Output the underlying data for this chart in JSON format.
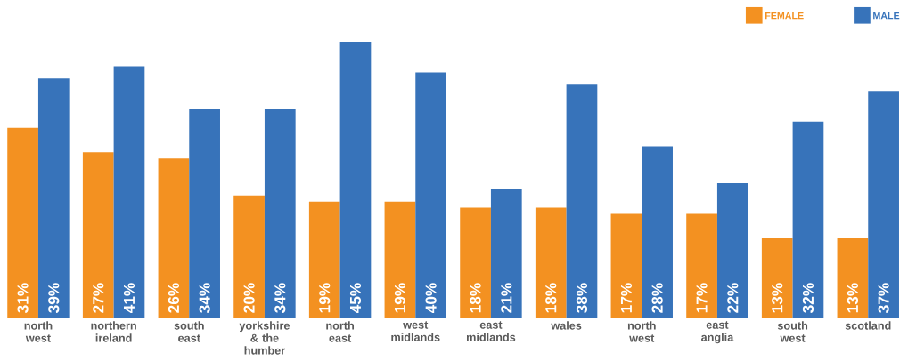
{
  "chart_data": {
    "type": "bar",
    "categories": [
      "north west",
      "northern ireland",
      "south east",
      "yorkshire & the humber",
      "north east",
      "west midlands",
      "east midlands",
      "wales",
      "north west",
      "east anglia",
      "south west",
      "scotland"
    ],
    "series": [
      {
        "name": "FEMALE",
        "color": "#f39121",
        "values": [
          31,
          27,
          26,
          20,
          19,
          19,
          18,
          18,
          17,
          17,
          13,
          13
        ],
        "value_labels": [
          "31%",
          "27%",
          "26%",
          "20%",
          "19%",
          "19%",
          "18%",
          "18%",
          "17%",
          "17%",
          "13%",
          "13%"
        ]
      },
      {
        "name": "MALE",
        "color": "#3773ba",
        "values": [
          39,
          41,
          34,
          34,
          45,
          40,
          21,
          38,
          28,
          22,
          32,
          37
        ],
        "value_labels": [
          "39%",
          "41%",
          "34%",
          "34%",
          "45%",
          "40%",
          "21%",
          "38%",
          "28%",
          "22%",
          "32%",
          "37%"
        ]
      }
    ],
    "legend": "top right",
    "tick_labels": "x"
  }
}
